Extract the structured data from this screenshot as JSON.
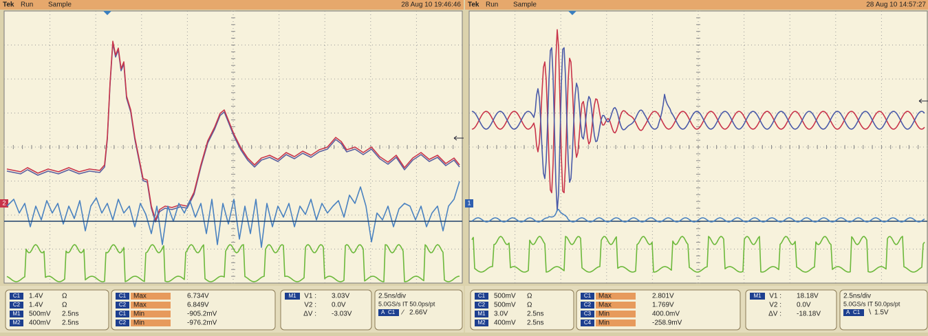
{
  "panels": [
    {
      "header": {
        "brand": "Tek",
        "run": "Run",
        "mode": "Sample",
        "timestamp": "28 Aug 10 19:46:46"
      },
      "marker": "2",
      "channels": [
        {
          "label": "C1",
          "scale": "1.4V",
          "unit": "Ω"
        },
        {
          "label": "C2",
          "scale": "1.4V",
          "unit": "Ω"
        },
        {
          "label": "M1",
          "scale": "500mV",
          "unit": "2.5ns"
        },
        {
          "label": "M2",
          "scale": "400mV",
          "unit": "2.5ns"
        }
      ],
      "measurements": [
        {
          "source": "C1",
          "type": "Max",
          "value": "6.734V"
        },
        {
          "source": "C2",
          "type": "Max",
          "value": "6.849V"
        },
        {
          "source": "C1",
          "type": "Min",
          "value": "-905.2mV"
        },
        {
          "source": "C2",
          "type": "Min",
          "value": "-976.2mV"
        }
      ],
      "cursor": {
        "source": "M1",
        "rows": [
          {
            "label": "V1 :",
            "value": "3.03V"
          },
          {
            "label": "V2 :",
            "value": "0.0V"
          },
          {
            "label": "ΔV :",
            "value": "-3.03V"
          }
        ]
      },
      "timebase": {
        "scale": "2.5ns/div",
        "rate": "5.0GS/s IT 50.0ps/pt",
        "mode": "A",
        "source": "C1",
        "slope": "∕",
        "level": "2.66V"
      }
    },
    {
      "header": {
        "brand": "Tek",
        "run": "Run",
        "mode": "Sample",
        "timestamp": "28 Aug 10 14:57:27"
      },
      "marker": "1",
      "channels": [
        {
          "label": "C1",
          "scale": "500mV",
          "unit": "Ω"
        },
        {
          "label": "C2",
          "scale": "500mV",
          "unit": "Ω"
        },
        {
          "label": "M1",
          "scale": "3.0V",
          "unit": "2.5ns"
        },
        {
          "label": "M2",
          "scale": "400mV",
          "unit": "2.5ns"
        }
      ],
      "measurements": [
        {
          "source": "C1",
          "type": "Max",
          "value": "2.801V"
        },
        {
          "source": "C2",
          "type": "Max",
          "value": "1.769V"
        },
        {
          "source": "C3",
          "type": "Min",
          "value": "400.0mV"
        },
        {
          "source": "C4",
          "type": "Min",
          "value": "-258.9mV"
        }
      ],
      "cursor": {
        "source": "M1",
        "rows": [
          {
            "label": "V1 :",
            "value": "18.18V"
          },
          {
            "label": "V2 :",
            "value": "0.0V"
          },
          {
            "label": "ΔV :",
            "value": "-18.18V"
          }
        ]
      },
      "timebase": {
        "scale": "2.5ns/div",
        "rate": "5.0GS/s IT 50.0ps/pt",
        "mode": "A",
        "source": "C1",
        "slope": "∖",
        "level": "1.5V"
      }
    }
  ]
}
